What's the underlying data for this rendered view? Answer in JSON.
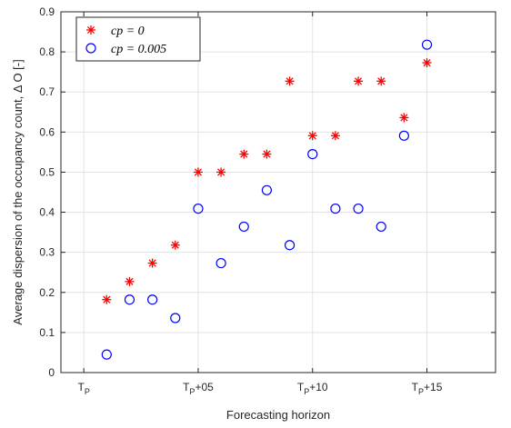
{
  "chart_data": {
    "type": "scatter",
    "xlabel": "Forecasting horizon",
    "ylabel": "Average dispersion of the occupancy count, Δ O [-]",
    "xlim": [
      -1,
      18
    ],
    "ylim": [
      0,
      0.9
    ],
    "grid": true,
    "legend_position": "top-left",
    "x_ticks": [
      {
        "x": 0,
        "base": "T",
        "sub": "P",
        "suffix": ""
      },
      {
        "x": 5,
        "base": "T",
        "sub": "P",
        "suffix": "+05"
      },
      {
        "x": 10,
        "base": "T",
        "sub": "P",
        "suffix": "+10"
      },
      {
        "x": 15,
        "base": "T",
        "sub": "P",
        "suffix": "+15"
      }
    ],
    "y_ticks": [
      "0",
      "0.1",
      "0.2",
      "0.3",
      "0.4",
      "0.5",
      "0.6",
      "0.7",
      "0.8",
      "0.9"
    ],
    "series": [
      {
        "name": "cp = 0",
        "marker": "asterisk",
        "color": "#ff0000",
        "x": [
          1,
          2,
          3,
          4,
          5,
          6,
          7,
          8,
          9,
          10,
          11,
          12,
          13,
          14,
          15
        ],
        "y": [
          0.182,
          0.227,
          0.273,
          0.318,
          0.5,
          0.5,
          0.545,
          0.545,
          0.727,
          0.591,
          0.591,
          0.727,
          0.727,
          0.636,
          0.773
        ]
      },
      {
        "name": "cp = 0.005",
        "marker": "circle",
        "color": "#0000ff",
        "x": [
          1,
          2,
          3,
          4,
          5,
          6,
          7,
          8,
          9,
          10,
          11,
          12,
          13,
          14,
          15
        ],
        "y": [
          0.045,
          0.182,
          0.182,
          0.136,
          0.409,
          0.273,
          0.364,
          0.455,
          0.318,
          0.545,
          0.409,
          0.409,
          0.364,
          0.591,
          0.818
        ]
      }
    ]
  }
}
